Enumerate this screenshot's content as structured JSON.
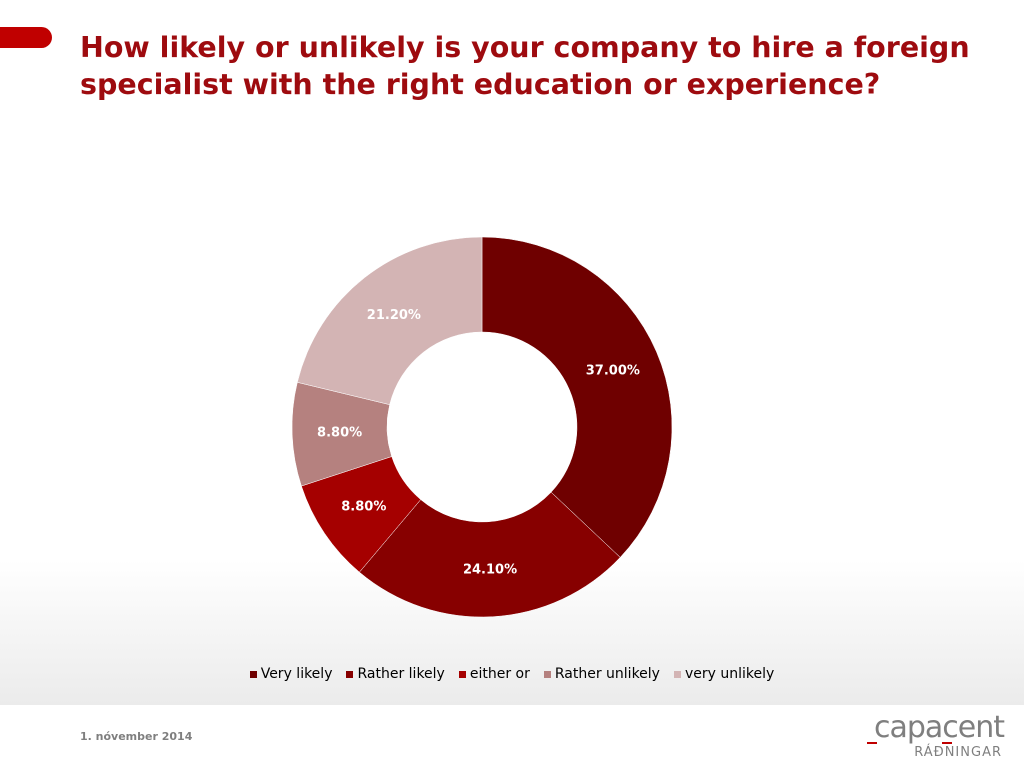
{
  "title": "How likely or unlikely is your company to hire a foreign specialist with the right education or experience?",
  "footer_date": "1. nóvember 2014",
  "logo": {
    "main": "capacent",
    "sub": "RÁÐNINGAR",
    "mark_color": "#c00000"
  },
  "accent_color": "#c00000",
  "chart_data": {
    "type": "pie",
    "variant": "donut",
    "categories": [
      "Very likely",
      "Rather likely",
      "either or",
      "Rather unlikely",
      "very unlikely"
    ],
    "values": [
      37.0,
      24.1,
      8.8,
      8.8,
      21.2
    ],
    "labels": [
      "37.00%",
      "24.10%",
      "8.80%",
      "8.80%",
      "21.20%"
    ],
    "colors": [
      "#6f0000",
      "#870000",
      "#a50000",
      "#b5817f",
      "#d3b4b4"
    ],
    "legend_position": "bottom"
  }
}
